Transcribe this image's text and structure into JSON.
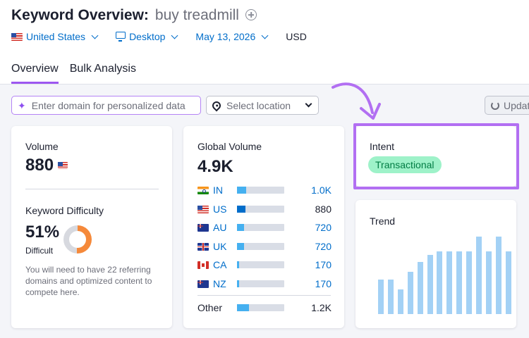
{
  "header": {
    "title": "Keyword Overview:",
    "keyword": "buy treadmill",
    "add_icon": "plus-circle-icon"
  },
  "filters": {
    "country": "United States",
    "device": "Desktop",
    "date": "May 13, 2026",
    "currency": "USD"
  },
  "tabs": [
    {
      "label": "Overview",
      "active": true
    },
    {
      "label": "Bulk Analysis",
      "active": false
    }
  ],
  "controls": {
    "domain_placeholder": "Enter domain for personalized data",
    "location_placeholder": "Select location",
    "update_label": "Update"
  },
  "volume": {
    "label": "Volume",
    "value": "880",
    "flag": "us-flag-icon"
  },
  "difficulty": {
    "label": "Keyword Difficulty",
    "value": "51%",
    "level": "Difficult",
    "percent": 51,
    "color": "#f5893a",
    "note": "You will need to have 22 referring domains and optimized content to compete here."
  },
  "global_volume": {
    "label": "Global Volume",
    "value": "4.9K",
    "countries": [
      {
        "code": "IN",
        "value": "1.0K",
        "share": 0.2,
        "flag": "india-flag-icon"
      },
      {
        "code": "US",
        "value": "880",
        "share": 0.18,
        "flag": "us-flag-icon"
      },
      {
        "code": "AU",
        "value": "720",
        "share": 0.15,
        "flag": "australia-flag-icon"
      },
      {
        "code": "UK",
        "value": "720",
        "share": 0.15,
        "flag": "uk-flag-icon"
      },
      {
        "code": "CA",
        "value": "170",
        "share": 0.04,
        "flag": "canada-flag-icon"
      },
      {
        "code": "NZ",
        "value": "170",
        "share": 0.04,
        "flag": "new-zealand-flag-icon"
      }
    ],
    "other": {
      "label": "Other",
      "value": "1.2K",
      "share": 0.25
    }
  },
  "intent": {
    "label": "Intent",
    "badge": "Transactional",
    "highlight_color": "#b26ff2"
  },
  "trend": {
    "label": "Trend",
    "values": [
      0.39,
      0.39,
      0.28,
      0.48,
      0.59,
      0.67,
      0.71,
      0.71,
      0.71,
      0.71,
      0.88,
      0.71,
      0.88,
      0.71
    ]
  },
  "colors": {
    "accent_blue": "#006dca",
    "accent_purple": "#9d57f0",
    "bar_blue": "#45b0f0",
    "trend_blue": "#a3d1f5"
  }
}
